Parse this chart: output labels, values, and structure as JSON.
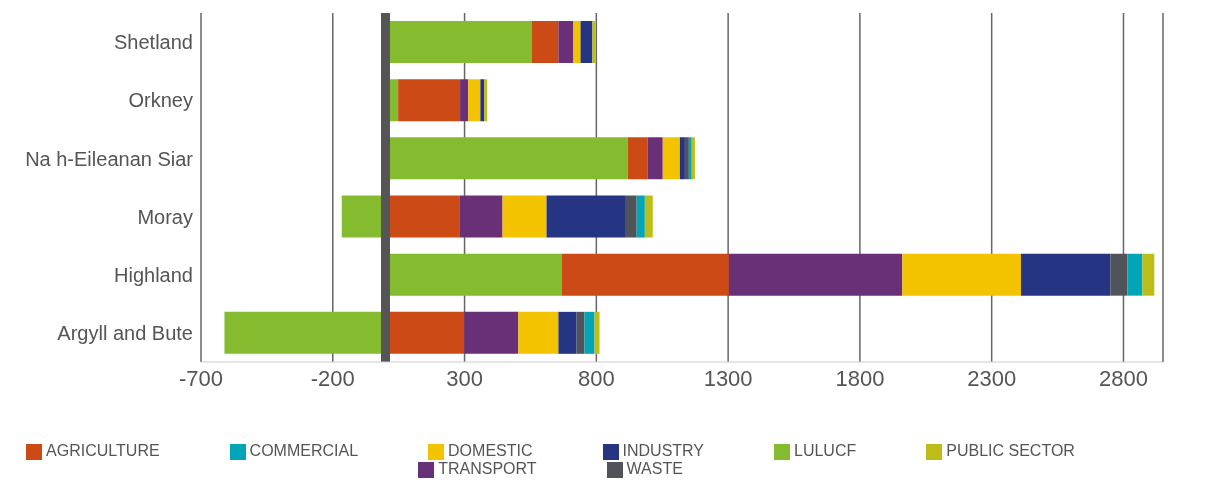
{
  "chart_data": {
    "type": "bar",
    "orientation": "horizontal",
    "stacked": true,
    "categories": [
      "Shetland",
      "Orkney",
      "Na h-Eileanan Siar",
      "Moray",
      "Highland",
      "Argyll and Bute"
    ],
    "series": [
      {
        "name": "LULUCF",
        "color": "#84bb2f",
        "values": [
          554,
          48,
          919,
          -166,
          668,
          -611
        ]
      },
      {
        "name": "AGRICULTURE",
        "color": "#cb4a16",
        "values": [
          102,
          235,
          76,
          280,
          635,
          299
        ]
      },
      {
        "name": "TRANSPORT",
        "color": "#6a3077",
        "values": [
          57,
          31,
          57,
          164,
          658,
          205
        ]
      },
      {
        "name": "DOMESTIC",
        "color": "#f4c300",
        "values": [
          27,
          46,
          65,
          167,
          450,
          152
        ]
      },
      {
        "name": "INDUSTRY",
        "color": "#263583",
        "values": [
          45,
          15,
          19,
          301,
          339,
          69
        ]
      },
      {
        "name": "WASTE",
        "color": "#50535a",
        "values": [
          0,
          0,
          15,
          41,
          65,
          30
        ]
      },
      {
        "name": "COMMERCIAL",
        "color": "#00a6b7",
        "values": [
          0,
          0,
          11,
          31,
          57,
          38
        ]
      },
      {
        "name": "PUBLIC SECTOR",
        "color": "#bcbd18",
        "values": [
          12,
          11,
          12,
          30,
          45,
          19
        ]
      }
    ],
    "xlim": [
      -700,
      2950
    ],
    "xticks": [
      -700,
      -200,
      300,
      800,
      1300,
      1800,
      2300,
      2800
    ],
    "grid": "x",
    "legend": "bottom",
    "ref_lines": [
      {
        "axis": "x",
        "value": 0,
        "color": "#555555"
      }
    ]
  }
}
